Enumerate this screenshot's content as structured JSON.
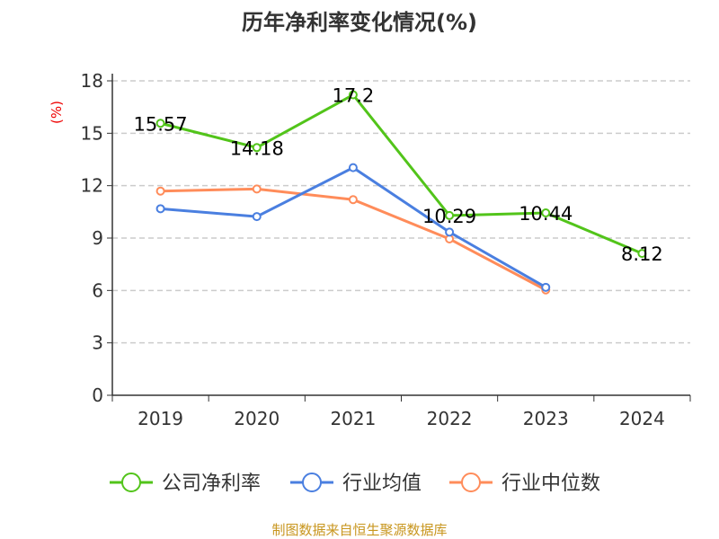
{
  "chart_data": {
    "type": "line",
    "title": "历年净利率变化情况(%)",
    "ylabel": "(%)",
    "xlabel": "",
    "categories": [
      "2019",
      "2020",
      "2021",
      "2022",
      "2023",
      "2024"
    ],
    "ylim": [
      0,
      18
    ],
    "yticks": [
      0,
      3,
      6,
      9,
      12,
      15,
      18
    ],
    "grid": true,
    "legend_position": "bottom",
    "series": [
      {
        "name": "公司净利率",
        "color": "#52c41a",
        "values": [
          15.57,
          14.18,
          17.2,
          10.29,
          10.44,
          8.12
        ],
        "labels": [
          "15.57",
          "14.18",
          "17.2",
          "10.29",
          "10.44",
          "8.12"
        ]
      },
      {
        "name": "行业均值",
        "color": "#4a7fe0",
        "values": [
          10.68,
          10.23,
          13.03,
          9.34,
          6.18,
          null
        ]
      },
      {
        "name": "行业中位数",
        "color": "#ff8c5a",
        "values": [
          11.69,
          11.81,
          11.2,
          8.95,
          6.03,
          null
        ]
      }
    ],
    "source": "制图数据来自恒生聚源数据库"
  }
}
